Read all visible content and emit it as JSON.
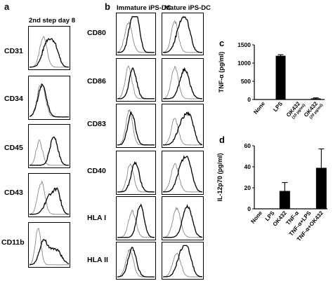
{
  "panel_a": {
    "letter": "a",
    "header": "2nd step day 8",
    "markers": [
      "CD31",
      "CD34",
      "CD45",
      "CD43",
      "CD11b"
    ]
  },
  "panel_b": {
    "letter": "b",
    "header_immature": "Immature iPS-DC",
    "header_mature": "Mature iPS-DC",
    "markers": [
      "CD80",
      "CD86",
      "CD83",
      "CD40",
      "HLA I",
      "HLA II"
    ]
  },
  "chart_data": [
    {
      "panel": "c",
      "type": "bar",
      "ylabel": "TNF-α (pg/ml)",
      "ylim": [
        0,
        1500
      ],
      "yticks": [
        0,
        500,
        1000,
        1500
      ],
      "categories": [
        "None",
        "LPS",
        "OK432",
        "OK432"
      ],
      "category_sublabels": [
        "",
        "",
        "(10 μg/ml)",
        "(20 μg/ml)"
      ],
      "values": [
        0,
        1200,
        0,
        30
      ],
      "errors": [
        0,
        30,
        0,
        15
      ],
      "color": "#000000"
    },
    {
      "panel": "d",
      "type": "bar",
      "ylabel": "IL-12p70 (pg/ml)",
      "ylim": [
        0,
        60
      ],
      "yticks": [
        0,
        20,
        40,
        60
      ],
      "categories": [
        "None",
        "LPS",
        "OK432",
        "TNF-α",
        "TNF-α+LPS",
        "TNF-α+OK432"
      ],
      "values": [
        0,
        0,
        17,
        0,
        0,
        39
      ],
      "errors": [
        0,
        0,
        8,
        0,
        0,
        18
      ],
      "color": "#000000"
    }
  ]
}
